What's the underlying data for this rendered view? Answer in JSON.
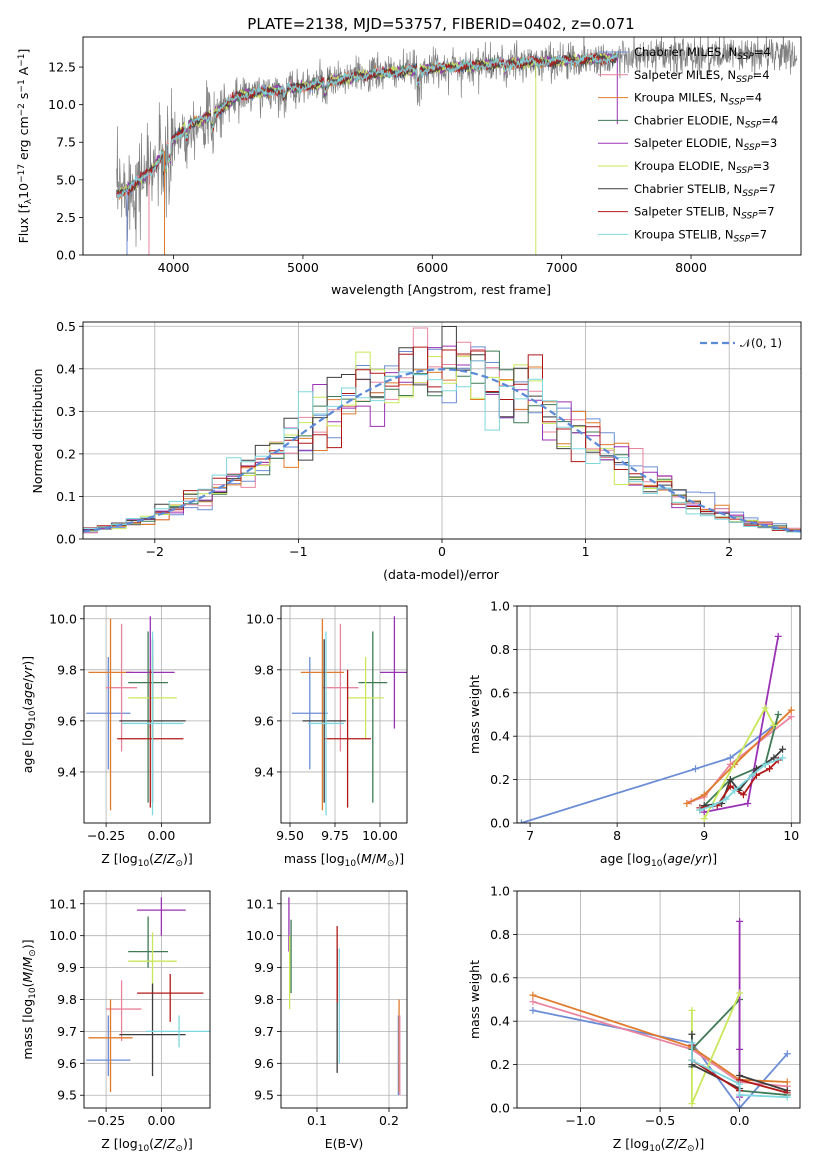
{
  "figure_title": "PLATE=2138, MJD=53757, FIBERID=0402, z=0.071",
  "models": [
    {
      "name": "Chabrier MILES, N_SSP=4",
      "nssp": "4",
      "color": "#6b8dd6"
    },
    {
      "name": "Salpeter MILES, N_SSP=4",
      "nssp": "4",
      "color": "#e9849e"
    },
    {
      "name": "Kroupa MILES, N_SSP=4",
      "nssp": "4",
      "color": "#e07b2c"
    },
    {
      "name": "Chabrier ELODIE, N_SSP=4",
      "nssp": "4",
      "color": "#3f7a55"
    },
    {
      "name": "Salpeter ELODIE, N_SSP=3",
      "nssp": "3",
      "color": "#9a32b5"
    },
    {
      "name": "Kroupa ELODIE, N_SSP=3",
      "nssp": "3",
      "color": "#c8e85a"
    },
    {
      "name": "Chabrier STELIB, N_SSP=7",
      "nssp": "7",
      "color": "#3d3d3d"
    },
    {
      "name": "Salpeter STELIB, N_SSP=7",
      "nssp": "7",
      "color": "#b01818"
    },
    {
      "name": "Kroupa STELIB, N_SSP=7",
      "nssp": "7",
      "color": "#7fd7e0"
    }
  ],
  "chart_data": [
    {
      "id": "spectrum",
      "type": "line",
      "xlabel": "wavelength [Angstrom, rest frame]",
      "ylabel": "Flux [f_λ 10^-17 erg cm^-2 s^-1 A^-1]",
      "xlim": [
        3300,
        8850
      ],
      "ylim": [
        0,
        14.5
      ],
      "xticks": [
        4000,
        5000,
        6000,
        7000,
        8000
      ],
      "yticks": [
        0.0,
        2.5,
        5.0,
        7.5,
        10.0,
        12.5
      ],
      "observed_color": "#808080",
      "observed_anchor_x": [
        3560,
        3700,
        3850,
        3950,
        4100,
        4300,
        4500,
        5000,
        5500,
        6000,
        6500,
        7000,
        7400,
        7800,
        8300,
        8820
      ],
      "observed_anchor_y": [
        4.0,
        4.7,
        5.8,
        7.2,
        8.6,
        9.3,
        10.6,
        11.2,
        12.0,
        12.4,
        12.7,
        12.9,
        13.1,
        13.2,
        13.3,
        13.4
      ],
      "model_x_range": [
        3560,
        7430
      ],
      "grid": false,
      "legend": "right"
    },
    {
      "id": "residuals",
      "type": "histogram",
      "xlabel": "(data-model)/error",
      "ylabel": "Normed distribution",
      "xlim": [
        -2.5,
        2.5
      ],
      "ylim": [
        0,
        0.51
      ],
      "xticks": [
        -2,
        -1,
        0,
        1,
        2
      ],
      "yticks": [
        0.0,
        0.1,
        0.2,
        0.3,
        0.4,
        0.5
      ],
      "bin_width": 0.1,
      "reference_curve": {
        "name": "𝒩(0, 1)",
        "mean": 0,
        "sigma": 1,
        "color": "#5b8ad8"
      },
      "grid": true,
      "legend": "top-right"
    },
    {
      "id": "age_vs_Z",
      "type": "errorbar",
      "xlabel": "Z [log10(Z/Z_sun)]",
      "ylabel": "age [log10(age/yr)]",
      "xlim": [
        -0.35,
        0.22
      ],
      "ylim": [
        9.2,
        10.05
      ],
      "xticks": [
        -0.25,
        0.0
      ],
      "yticks": [
        9.4,
        9.6,
        9.8,
        10.0
      ],
      "points": [
        {
          "x": -0.24,
          "y": 9.63,
          "xerr": [
            0.1,
            0.1
          ],
          "yerr": [
            0.22,
            0.22
          ],
          "color": "#6b8dd6"
        },
        {
          "x": -0.18,
          "y": 9.73,
          "xerr": [
            0.07,
            0.07
          ],
          "yerr": [
            0.25,
            0.25
          ],
          "color": "#e9849e"
        },
        {
          "x": -0.23,
          "y": 9.79,
          "xerr": [
            0.1,
            0.1
          ],
          "yerr": [
            0.54,
            0.21
          ],
          "color": "#e07b2c"
        },
        {
          "x": -0.06,
          "y": 9.75,
          "xerr": [
            0.09,
            0.09
          ],
          "yerr": [
            0.47,
            0.2
          ],
          "color": "#3f7a55"
        },
        {
          "x": -0.05,
          "y": 9.79,
          "xerr": [
            0.11,
            0.11
          ],
          "yerr": [
            0.22,
            0.22
          ],
          "color": "#9a32b5"
        },
        {
          "x": -0.04,
          "y": 9.69,
          "xerr": [
            0.11,
            0.11
          ],
          "yerr": [
            0.16,
            0.16
          ],
          "color": "#c8e85a"
        },
        {
          "x": -0.04,
          "y": 9.6,
          "xerr": [
            0.15,
            0.15
          ],
          "yerr": [
            0.32,
            0.32
          ],
          "color": "#3d3d3d"
        },
        {
          "x": -0.05,
          "y": 9.53,
          "xerr": [
            0.15,
            0.15
          ],
          "yerr": [
            0.27,
            0.27
          ],
          "color": "#b01818"
        },
        {
          "x": -0.04,
          "y": 9.59,
          "xerr": [
            0.14,
            0.14
          ],
          "yerr": [
            0.36,
            0.36
          ],
          "color": "#7fd7e0"
        }
      ]
    },
    {
      "id": "age_vs_mass",
      "type": "errorbar",
      "xlabel": "mass [log10(M/M_sun)]",
      "ylabel": "",
      "xlim": [
        9.45,
        10.15
      ],
      "ylim": [
        9.2,
        10.05
      ],
      "xticks": [
        9.5,
        9.75,
        10.0
      ],
      "yticks": [
        9.4,
        9.6,
        9.8,
        10.0
      ],
      "points": [
        {
          "x": 9.61,
          "y": 9.63,
          "xerr": [
            0.1,
            0.1
          ],
          "yerr": [
            0.22,
            0.22
          ],
          "color": "#6b8dd6"
        },
        {
          "x": 9.78,
          "y": 9.73,
          "xerr": [
            0.1,
            0.1
          ],
          "yerr": [
            0.25,
            0.25
          ],
          "color": "#e9849e"
        },
        {
          "x": 9.68,
          "y": 9.79,
          "xerr": [
            0.12,
            0.12
          ],
          "yerr": [
            0.54,
            0.21
          ],
          "color": "#e07b2c"
        },
        {
          "x": 9.96,
          "y": 9.75,
          "xerr": [
            0.08,
            0.08
          ],
          "yerr": [
            0.47,
            0.2
          ],
          "color": "#3f7a55"
        },
        {
          "x": 10.08,
          "y": 9.79,
          "xerr": [
            0.08,
            0.08
          ],
          "yerr": [
            0.22,
            0.22
          ],
          "color": "#9a32b5"
        },
        {
          "x": 9.92,
          "y": 9.69,
          "xerr": [
            0.1,
            0.1
          ],
          "yerr": [
            0.16,
            0.16
          ],
          "color": "#c8e85a"
        },
        {
          "x": 9.69,
          "y": 9.6,
          "xerr": [
            0.12,
            0.12
          ],
          "yerr": [
            0.32,
            0.32
          ],
          "color": "#3d3d3d"
        },
        {
          "x": 9.82,
          "y": 9.53,
          "xerr": [
            0.13,
            0.13
          ],
          "yerr": [
            0.27,
            0.27
          ],
          "color": "#b01818"
        },
        {
          "x": 9.7,
          "y": 9.59,
          "xerr": [
            0.1,
            0.1
          ],
          "yerr": [
            0.36,
            0.36
          ],
          "color": "#7fd7e0"
        }
      ]
    },
    {
      "id": "weight_vs_age",
      "type": "line",
      "xlabel": "age [log10(age/yr)]",
      "ylabel": "mass weight",
      "xlim": [
        6.85,
        10.1
      ],
      "ylim": [
        0,
        1.0
      ],
      "xticks": [
        7,
        8,
        9,
        10
      ],
      "yticks": [
        0.0,
        0.2,
        0.4,
        0.6,
        0.8,
        1.0
      ],
      "grid": true,
      "series": [
        {
          "color": "#6b8dd6",
          "x": [
            6.9,
            8.9,
            9.3,
            9.8
          ],
          "y": [
            0.0,
            0.25,
            0.3,
            0.45
          ]
        },
        {
          "color": "#e9849e",
          "x": [
            8.85,
            9.0,
            9.3,
            10.0
          ],
          "y": [
            0.1,
            0.12,
            0.27,
            0.49
          ]
        },
        {
          "color": "#e07b2c",
          "x": [
            8.8,
            9.0,
            9.35,
            10.0
          ],
          "y": [
            0.09,
            0.13,
            0.27,
            0.52
          ]
        },
        {
          "color": "#3f7a55",
          "x": [
            8.95,
            9.3,
            9.7,
            9.85
          ],
          "y": [
            0.06,
            0.2,
            0.27,
            0.5
          ]
        },
        {
          "color": "#9a32b5",
          "x": [
            9.0,
            9.5,
            9.85
          ],
          "y": [
            0.05,
            0.09,
            0.86
          ]
        },
        {
          "color": "#c8e85a",
          "x": [
            9.0,
            9.7,
            9.8
          ],
          "y": [
            0.02,
            0.53,
            0.45
          ]
        },
        {
          "color": "#3d3d3d",
          "x": [
            9.0,
            9.2,
            9.3,
            9.4,
            9.6,
            9.8,
            9.9
          ],
          "y": [
            0.08,
            0.09,
            0.2,
            0.15,
            0.25,
            0.3,
            0.34
          ]
        },
        {
          "color": "#b01818",
          "x": [
            8.95,
            9.15,
            9.3,
            9.45,
            9.6,
            9.75,
            9.85
          ],
          "y": [
            0.07,
            0.08,
            0.17,
            0.13,
            0.22,
            0.25,
            0.29
          ]
        },
        {
          "color": "#7fd7e0",
          "x": [
            8.95,
            9.1,
            9.25,
            9.35,
            9.55,
            9.7,
            9.9
          ],
          "y": [
            0.06,
            0.08,
            0.11,
            0.15,
            0.22,
            0.27,
            0.3
          ]
        }
      ]
    },
    {
      "id": "mass_vs_Z",
      "type": "errorbar",
      "xlabel": "Z [log10(Z/Z_sun)]",
      "ylabel": "mass [log10(M/M_sun)]",
      "xlim": [
        -0.35,
        0.22
      ],
      "ylim": [
        9.46,
        10.14
      ],
      "xticks": [
        -0.25,
        0.0
      ],
      "yticks": [
        9.5,
        9.6,
        9.7,
        9.8,
        9.9,
        10.0,
        10.1
      ],
      "points": [
        {
          "x": -0.24,
          "y": 9.61,
          "xerr": [
            0.1,
            0.1
          ],
          "yerr": [
            0.05,
            0.14
          ],
          "color": "#6b8dd6"
        },
        {
          "x": -0.18,
          "y": 9.77,
          "xerr": [
            0.07,
            0.09
          ],
          "yerr": [
            0.1,
            0.09
          ],
          "color": "#e9849e"
        },
        {
          "x": -0.23,
          "y": 9.68,
          "xerr": [
            0.1,
            0.1
          ],
          "yerr": [
            0.17,
            0.12
          ],
          "color": "#e07b2c"
        },
        {
          "x": -0.06,
          "y": 9.95,
          "xerr": [
            0.09,
            0.09
          ],
          "yerr": [
            0.05,
            0.11
          ],
          "color": "#3f7a55"
        },
        {
          "x": 0.0,
          "y": 10.08,
          "xerr": [
            0.11,
            0.11
          ],
          "yerr": [
            0.08,
            0.04
          ],
          "color": "#9a32b5"
        },
        {
          "x": -0.04,
          "y": 9.92,
          "xerr": [
            0.11,
            0.11
          ],
          "yerr": [
            0.1,
            0.09
          ],
          "color": "#c8e85a"
        },
        {
          "x": -0.04,
          "y": 9.69,
          "xerr": [
            0.15,
            0.15
          ],
          "yerr": [
            0.13,
            0.16
          ],
          "color": "#3d3d3d"
        },
        {
          "x": 0.04,
          "y": 9.82,
          "xerr": [
            0.15,
            0.15
          ],
          "yerr": [
            0.09,
            0.06
          ],
          "color": "#b01818"
        },
        {
          "x": 0.08,
          "y": 9.7,
          "xerr": [
            0.15,
            0.15
          ],
          "yerr": [
            0.05,
            0.05
          ],
          "color": "#7fd7e0"
        }
      ]
    },
    {
      "id": "mass_vs_ebv",
      "type": "errorbar",
      "xlabel": "E(B-V)",
      "ylabel": "",
      "xlim": [
        0.05,
        0.225
      ],
      "ylim": [
        9.46,
        10.14
      ],
      "xticks": [
        0.1,
        0.2
      ],
      "yticks": [
        9.5,
        9.6,
        9.7,
        9.8,
        9.9,
        10.0,
        10.1
      ],
      "points": [
        {
          "x": 0.213,
          "y": 9.62,
          "xerr": [
            0.0,
            0.0
          ],
          "yerr": [
            0.12,
            0.13
          ],
          "color": "#6b8dd6"
        },
        {
          "x": 0.214,
          "y": 9.7,
          "xerr": [
            0.0,
            0.0
          ],
          "yerr": [
            0.19,
            0.1
          ],
          "color": "#e07b2c"
        },
        {
          "x": 0.215,
          "y": 9.65,
          "xerr": [
            0.0,
            0.0
          ],
          "yerr": [
            0.15,
            0.1
          ],
          "color": "#e9849e"
        },
        {
          "x": 0.064,
          "y": 9.95,
          "xerr": [
            0.0,
            0.0
          ],
          "yerr": [
            0.13,
            0.1
          ],
          "color": "#3f7a55"
        },
        {
          "x": 0.061,
          "y": 10.05,
          "xerr": [
            0.0,
            0.0
          ],
          "yerr": [
            0.1,
            0.07
          ],
          "color": "#9a32b5"
        },
        {
          "x": 0.062,
          "y": 9.88,
          "xerr": [
            0.0,
            0.0
          ],
          "yerr": [
            0.11,
            0.12
          ],
          "color": "#c8e85a"
        },
        {
          "x": 0.128,
          "y": 9.7,
          "xerr": [
            0.0,
            0.0
          ],
          "yerr": [
            0.13,
            0.26
          ],
          "color": "#3d3d3d"
        },
        {
          "x": 0.128,
          "y": 9.87,
          "xerr": [
            0.0,
            0.0
          ],
          "yerr": [
            0.08,
            0.16
          ],
          "color": "#b01818"
        },
        {
          "x": 0.131,
          "y": 9.75,
          "xerr": [
            0.0,
            0.0
          ],
          "yerr": [
            0.15,
            0.21
          ],
          "color": "#7fd7e0"
        }
      ]
    },
    {
      "id": "weight_vs_Z",
      "type": "line",
      "xlabel": "Z [log10(Z/Z_sun)]",
      "ylabel": "mass weight",
      "xlim": [
        -1.4,
        0.38
      ],
      "ylim": [
        0,
        1.0
      ],
      "xticks": [
        -1.0,
        -0.5,
        0.0
      ],
      "yticks": [
        0.0,
        0.2,
        0.4,
        0.6,
        0.8,
        1.0
      ],
      "grid": true,
      "series": [
        {
          "color": "#6b8dd6",
          "x": [
            -1.3,
            -0.3,
            0.0,
            0.3
          ],
          "y": [
            0.45,
            0.3,
            0.0,
            0.25
          ]
        },
        {
          "color": "#e9849e",
          "x": [
            -1.3,
            -0.3,
            0.0,
            0.3
          ],
          "y": [
            0.49,
            0.27,
            0.12,
            0.1
          ]
        },
        {
          "color": "#e07b2c",
          "x": [
            -1.3,
            -0.3,
            0.0,
            0.3
          ],
          "y": [
            0.52,
            0.28,
            0.13,
            0.12
          ]
        },
        {
          "color": "#3f7a55",
          "x": [
            -0.3,
            -0.3,
            0.0,
            0.0,
            0.3
          ],
          "y": [
            0.19,
            0.27,
            0.5,
            0.08,
            0.06
          ]
        },
        {
          "color": "#9a32b5",
          "x": [
            0.0,
            0.0,
            0.0
          ],
          "y": [
            0.86,
            0.27,
            0.05
          ]
        },
        {
          "color": "#c8e85a",
          "x": [
            -0.3,
            -0.3,
            0.0
          ],
          "y": [
            0.45,
            0.02,
            0.53
          ]
        },
        {
          "color": "#3d3d3d",
          "x": [
            -0.3,
            -0.3,
            0.0,
            0.0,
            0.3
          ],
          "y": [
            0.34,
            0.2,
            0.09,
            0.15,
            0.08
          ]
        },
        {
          "color": "#b01818",
          "x": [
            -0.3,
            -0.3,
            0.0,
            0.0,
            0.3
          ],
          "y": [
            0.29,
            0.22,
            0.08,
            0.13,
            0.07
          ]
        },
        {
          "color": "#7fd7e0",
          "x": [
            -0.3,
            -0.3,
            0.0,
            0.0,
            0.3
          ],
          "y": [
            0.3,
            0.22,
            0.11,
            0.06,
            0.05
          ]
        }
      ]
    }
  ]
}
